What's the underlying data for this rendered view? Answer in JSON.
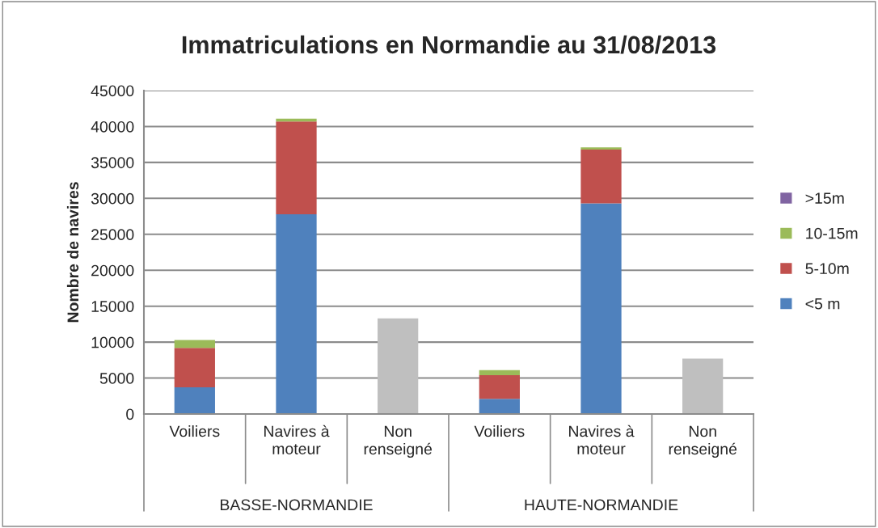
{
  "chart_data": {
    "type": "bar",
    "title": "Immatriculations en Normandie au 31/08/2013",
    "ylabel": "Nombre de navires",
    "categories": [
      "Voiliers",
      "Navires à moteur",
      "Non renseigné",
      "Voiliers",
      "Navires à moteur",
      "Non renseigné"
    ],
    "stacked": true,
    "series": [
      {
        "name": "<5 m",
        "color": "#4f81bd",
        "values": [
          3700,
          27800,
          null,
          2100,
          29300,
          null
        ]
      },
      {
        "name": "5-10m",
        "color": "#c0504d",
        "values": [
          5500,
          12900,
          null,
          3300,
          7500,
          null
        ]
      },
      {
        "name": "10-15m",
        "color": "#9bbb59",
        "values": [
          1100,
          400,
          null,
          700,
          300,
          null
        ]
      },
      {
        "name": ">15m",
        "color": "#8064a2",
        "values": [
          0,
          0,
          null,
          0,
          0,
          null
        ]
      },
      {
        "color": "#bfbfbf",
        "values": [
          null,
          null,
          13300,
          null,
          null,
          7700
        ]
      }
    ],
    "ylim": [
      0,
      45000
    ],
    "yticks": [
      0,
      5000,
      10000,
      15000,
      20000,
      25000,
      30000,
      35000,
      40000,
      45000
    ],
    "grid": "y",
    "legend": "right",
    "annotations": [
      "BASSE-NORMANDIE",
      "HAUTE-NORMANDIE"
    ]
  }
}
